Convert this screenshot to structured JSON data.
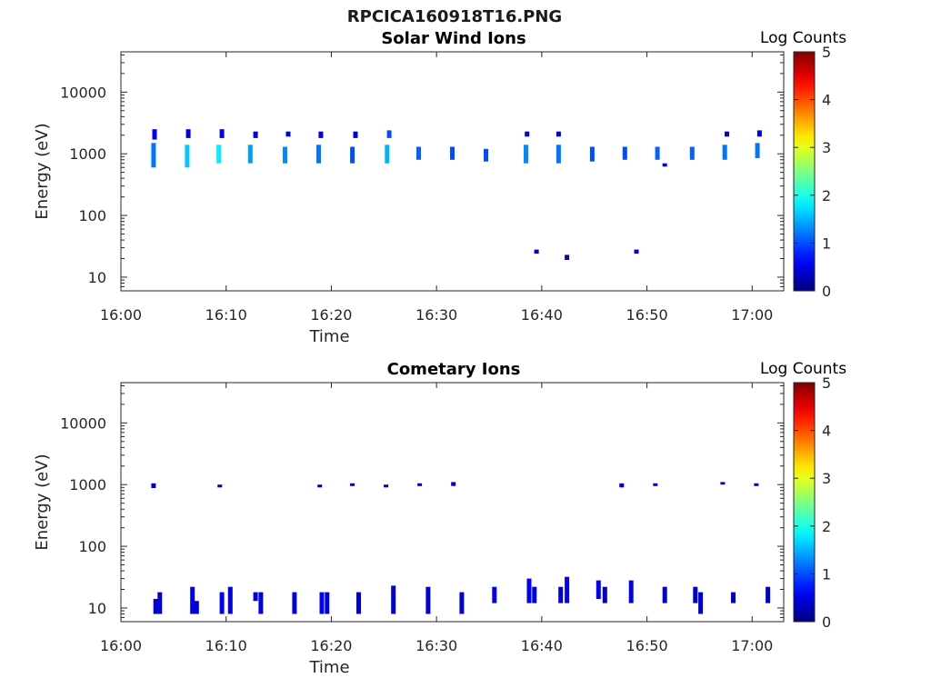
{
  "figure": {
    "title": "RPCICA160918T16.PNG"
  },
  "chart_data": [
    {
      "type": "heatmap",
      "title": "Solar Wind Ions",
      "xlabel": "Time",
      "ylabel": "Energy (eV)",
      "x_ticks": [
        "16:00",
        "16:10",
        "16:20",
        "16:30",
        "16:40",
        "16:50",
        "17:00"
      ],
      "x_range_minutes": [
        0,
        63
      ],
      "y_ticks": [
        "10",
        "100",
        "1000",
        "10000"
      ],
      "y_scale": "log",
      "y_range": [
        6,
        45000
      ],
      "colorbar": {
        "label": "Log Counts",
        "range": [
          0,
          5
        ],
        "ticks": [
          "0",
          "1",
          "2",
          "3",
          "4",
          "5"
        ],
        "colormap": "jet"
      },
      "cells": [
        {
          "t": 3.1,
          "e_lo": 600,
          "e_hi": 1500,
          "log": 1.2
        },
        {
          "t": 3.2,
          "e_lo": 1700,
          "e_hi": 2500,
          "log": 0.6
        },
        {
          "t": 6.3,
          "e_lo": 600,
          "e_hi": 1400,
          "log": 1.6
        },
        {
          "t": 6.4,
          "e_lo": 1800,
          "e_hi": 2500,
          "log": 0.5
        },
        {
          "t": 9.3,
          "e_lo": 700,
          "e_hi": 1400,
          "log": 1.8
        },
        {
          "t": 9.6,
          "e_lo": 1800,
          "e_hi": 2500,
          "log": 0.5
        },
        {
          "t": 12.3,
          "e_lo": 700,
          "e_hi": 1400,
          "log": 1.4
        },
        {
          "t": 12.8,
          "e_lo": 1800,
          "e_hi": 2300,
          "log": 0.5
        },
        {
          "t": 15.6,
          "e_lo": 700,
          "e_hi": 1300,
          "log": 1.3
        },
        {
          "t": 15.9,
          "e_lo": 1900,
          "e_hi": 2300,
          "log": 0.5
        },
        {
          "t": 18.8,
          "e_lo": 700,
          "e_hi": 1400,
          "log": 1.2
        },
        {
          "t": 19.0,
          "e_lo": 1800,
          "e_hi": 2300,
          "log": 0.5
        },
        {
          "t": 22.0,
          "e_lo": 700,
          "e_hi": 1300,
          "log": 1.0
        },
        {
          "t": 22.3,
          "e_lo": 1800,
          "e_hi": 2300,
          "log": 0.5
        },
        {
          "t": 25.3,
          "e_lo": 700,
          "e_hi": 1400,
          "log": 1.5
        },
        {
          "t": 25.5,
          "e_lo": 1800,
          "e_hi": 2400,
          "log": 1.0
        },
        {
          "t": 28.3,
          "e_lo": 800,
          "e_hi": 1300,
          "log": 1.1
        },
        {
          "t": 31.5,
          "e_lo": 800,
          "e_hi": 1300,
          "log": 1.0
        },
        {
          "t": 34.7,
          "e_lo": 750,
          "e_hi": 1200,
          "log": 1.0
        },
        {
          "t": 38.5,
          "e_lo": 700,
          "e_hi": 1400,
          "log": 1.3
        },
        {
          "t": 38.6,
          "e_lo": 1900,
          "e_hi": 2300,
          "log": 0.5
        },
        {
          "t": 41.6,
          "e_lo": 700,
          "e_hi": 1400,
          "log": 1.2
        },
        {
          "t": 41.6,
          "e_lo": 1900,
          "e_hi": 2300,
          "log": 0.5
        },
        {
          "t": 44.8,
          "e_lo": 750,
          "e_hi": 1300,
          "log": 1.0
        },
        {
          "t": 47.9,
          "e_lo": 800,
          "e_hi": 1300,
          "log": 1.0
        },
        {
          "t": 51.0,
          "e_lo": 800,
          "e_hi": 1300,
          "log": 1.1
        },
        {
          "t": 54.3,
          "e_lo": 800,
          "e_hi": 1300,
          "log": 1.1
        },
        {
          "t": 57.4,
          "e_lo": 800,
          "e_hi": 1400,
          "log": 1.2
        },
        {
          "t": 57.6,
          "e_lo": 1900,
          "e_hi": 2300,
          "log": 0.5
        },
        {
          "t": 60.5,
          "e_lo": 850,
          "e_hi": 1500,
          "log": 1.2
        },
        {
          "t": 60.7,
          "e_lo": 1900,
          "e_hi": 2400,
          "log": 0.5
        },
        {
          "t": 51.7,
          "e_lo": 620,
          "e_hi": 700,
          "log": 0.5
        },
        {
          "t": 39.5,
          "e_lo": 24,
          "e_hi": 28,
          "log": 0.4
        },
        {
          "t": 42.4,
          "e_lo": 19,
          "e_hi": 23,
          "log": 0.4
        },
        {
          "t": 49.0,
          "e_lo": 24,
          "e_hi": 28,
          "log": 0.4
        }
      ]
    },
    {
      "type": "heatmap",
      "title": "Cometary Ions",
      "xlabel": "Time",
      "ylabel": "Energy (eV)",
      "x_ticks": [
        "16:00",
        "16:10",
        "16:20",
        "16:30",
        "16:40",
        "16:50",
        "17:00"
      ],
      "x_range_minutes": [
        0,
        63
      ],
      "y_ticks": [
        "10",
        "100",
        "1000",
        "10000"
      ],
      "y_scale": "log",
      "y_range": [
        6,
        45000
      ],
      "colorbar": {
        "label": "Log Counts",
        "range": [
          0,
          5
        ],
        "ticks": [
          "0",
          "1",
          "2",
          "3",
          "4",
          "5"
        ],
        "colormap": "jet"
      },
      "cells": [
        {
          "t": 3.1,
          "e_lo": 880,
          "e_hi": 1050,
          "log": 0.3
        },
        {
          "t": 9.4,
          "e_lo": 900,
          "e_hi": 1000,
          "log": 0.3
        },
        {
          "t": 18.9,
          "e_lo": 900,
          "e_hi": 1000,
          "log": 0.3
        },
        {
          "t": 22.0,
          "e_lo": 950,
          "e_hi": 1050,
          "log": 0.3
        },
        {
          "t": 25.2,
          "e_lo": 900,
          "e_hi": 1000,
          "log": 0.3
        },
        {
          "t": 28.4,
          "e_lo": 950,
          "e_hi": 1050,
          "log": 0.3
        },
        {
          "t": 31.6,
          "e_lo": 950,
          "e_hi": 1100,
          "log": 0.3
        },
        {
          "t": 47.6,
          "e_lo": 900,
          "e_hi": 1050,
          "log": 0.3
        },
        {
          "t": 50.8,
          "e_lo": 950,
          "e_hi": 1050,
          "log": 0.3
        },
        {
          "t": 57.2,
          "e_lo": 1000,
          "e_hi": 1100,
          "log": 0.3
        },
        {
          "t": 60.4,
          "e_lo": 950,
          "e_hi": 1050,
          "log": 0.3
        },
        {
          "t": 3.3,
          "e_lo": 8,
          "e_hi": 14,
          "log": 0.4
        },
        {
          "t": 3.7,
          "e_lo": 8,
          "e_hi": 18,
          "log": 0.4
        },
        {
          "t": 6.8,
          "e_lo": 8,
          "e_hi": 22,
          "log": 0.5
        },
        {
          "t": 7.2,
          "e_lo": 8,
          "e_hi": 13,
          "log": 0.4
        },
        {
          "t": 9.6,
          "e_lo": 8,
          "e_hi": 18,
          "log": 0.6
        },
        {
          "t": 10.4,
          "e_lo": 8,
          "e_hi": 22,
          "log": 0.5
        },
        {
          "t": 12.8,
          "e_lo": 13,
          "e_hi": 18,
          "log": 0.4
        },
        {
          "t": 13.3,
          "e_lo": 8,
          "e_hi": 18,
          "log": 0.5
        },
        {
          "t": 16.5,
          "e_lo": 8,
          "e_hi": 18,
          "log": 0.5
        },
        {
          "t": 19.1,
          "e_lo": 8,
          "e_hi": 18,
          "log": 0.6
        },
        {
          "t": 19.6,
          "e_lo": 8,
          "e_hi": 18,
          "log": 0.4
        },
        {
          "t": 22.6,
          "e_lo": 8,
          "e_hi": 18,
          "log": 0.4
        },
        {
          "t": 25.9,
          "e_lo": 8,
          "e_hi": 23,
          "log": 0.4
        },
        {
          "t": 29.2,
          "e_lo": 8,
          "e_hi": 22,
          "log": 0.4
        },
        {
          "t": 32.4,
          "e_lo": 8,
          "e_hi": 18,
          "log": 0.4
        },
        {
          "t": 35.5,
          "e_lo": 12,
          "e_hi": 22,
          "log": 0.6
        },
        {
          "t": 38.8,
          "e_lo": 12,
          "e_hi": 30,
          "log": 0.6
        },
        {
          "t": 39.3,
          "e_lo": 12,
          "e_hi": 22,
          "log": 0.5
        },
        {
          "t": 41.8,
          "e_lo": 12,
          "e_hi": 22,
          "log": 0.4
        },
        {
          "t": 42.4,
          "e_lo": 12,
          "e_hi": 32,
          "log": 0.6
        },
        {
          "t": 45.4,
          "e_lo": 14,
          "e_hi": 28,
          "log": 0.6
        },
        {
          "t": 46.0,
          "e_lo": 12,
          "e_hi": 22,
          "log": 0.4
        },
        {
          "t": 48.5,
          "e_lo": 12,
          "e_hi": 28,
          "log": 0.5
        },
        {
          "t": 51.7,
          "e_lo": 12,
          "e_hi": 22,
          "log": 0.4
        },
        {
          "t": 54.6,
          "e_lo": 12,
          "e_hi": 22,
          "log": 0.4
        },
        {
          "t": 55.1,
          "e_lo": 8,
          "e_hi": 18,
          "log": 0.4
        },
        {
          "t": 58.2,
          "e_lo": 12,
          "e_hi": 18,
          "log": 0.4
        },
        {
          "t": 61.5,
          "e_lo": 12,
          "e_hi": 22,
          "log": 0.4
        }
      ]
    }
  ]
}
